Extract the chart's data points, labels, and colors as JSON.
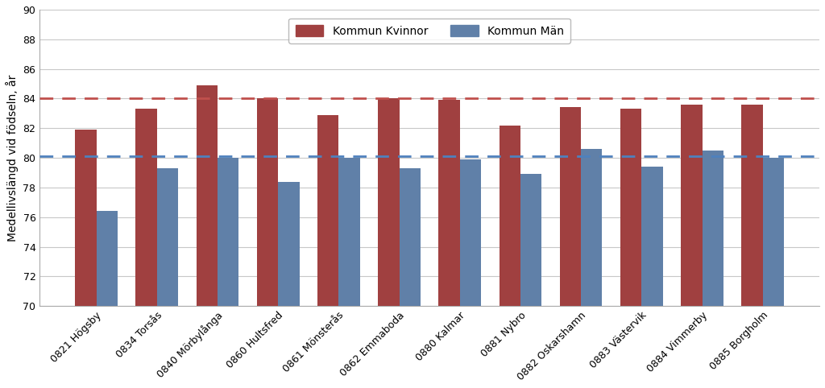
{
  "categories": [
    "0821 Högsby",
    "0834 Torsås",
    "0840 Mörbylånga",
    "0860 Hultsfred",
    "0861 Mönsterås",
    "0862 Emmaboda",
    "0880 Kalmar",
    "0881 Nybro",
    "0882 Oskarshamn",
    "0883 Västervik",
    "0884 Vimmerby",
    "0885 Borgholm"
  ],
  "kvinnor": [
    81.9,
    83.3,
    84.9,
    84.0,
    82.9,
    84.0,
    83.9,
    82.2,
    83.4,
    83.3,
    83.6,
    83.6
  ],
  "man": [
    76.4,
    79.3,
    80.0,
    78.4,
    80.0,
    79.3,
    79.9,
    78.9,
    80.6,
    79.4,
    80.5,
    80.0
  ],
  "ref_kvinnor": 84.0,
  "ref_man": 80.1,
  "bar_color_kvinnor": "#a04040",
  "bar_color_man": "#6080a8",
  "ref_color_kvinnor": "#c0504d",
  "ref_color_man": "#4f81bd",
  "ylabel": "Medellivslängd vid födseln, år",
  "ylim_min": 70,
  "ylim_max": 90,
  "yticks": [
    70,
    72,
    74,
    76,
    78,
    80,
    82,
    84,
    86,
    88,
    90
  ],
  "legend_kvinnor": "Kommun Kvinnor",
  "legend_man": "Kommun Män",
  "background_color": "#ffffff",
  "plot_bg_color": "#ffffff",
  "bar_width": 0.35,
  "label_fontsize": 10,
  "tick_fontsize": 9,
  "grid_color": "#c8c8c8",
  "border_color": "#aaaaaa"
}
